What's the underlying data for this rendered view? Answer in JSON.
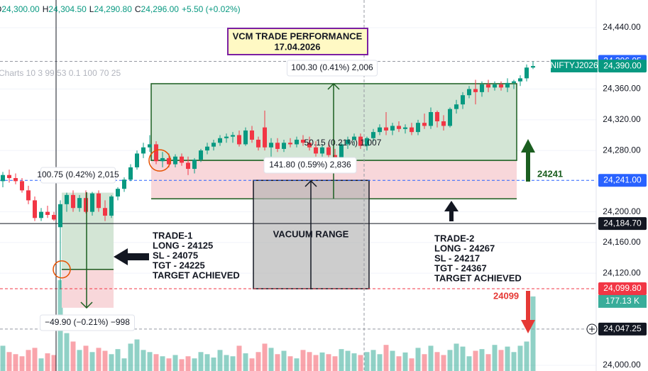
{
  "chart_data": {
    "type": "candlestick",
    "header": {
      "open_label": "O",
      "open": "24,300.00",
      "high_label": "H",
      "high": "24,304.50",
      "low_label": "L",
      "low": "24,290.80",
      "close_label": "C",
      "close": "24,296.00",
      "change": "+5.50 (+0.02%)"
    },
    "indicator": "Charts 10 3 99 53 0.1 100 70 25",
    "title": [
      "VCM TRADE PERFORMANCE",
      "17.04.2026"
    ],
    "symbol": "NIFTYJ2026",
    "up_color": "#089981",
    "down_color": "#f23645",
    "ylim": [
      23992.6,
      24476.05
    ],
    "yticks": [
      {
        "value": 24440,
        "label": "24,440.00"
      },
      {
        "value": 24360,
        "label": "24,360.00"
      },
      {
        "value": 24320,
        "label": "24,320.00"
      },
      {
        "value": 24280,
        "label": "24,280.00"
      },
      {
        "value": 24200,
        "label": "24,200.00"
      },
      {
        "value": 24160,
        "label": "24,160.00"
      },
      {
        "value": 24120,
        "label": "24,120.00"
      },
      {
        "value": 24000,
        "label": "24,000.00"
      }
    ],
    "grid": true,
    "levels": [
      {
        "value": 24396.05,
        "label": "24,396.05",
        "color": "#2962ff",
        "line_color": "#9598a1",
        "dashed": true
      },
      {
        "value": 24390,
        "label": "24,390.00",
        "color": "#089981",
        "line_color": null,
        "dashed": false
      },
      {
        "value": 24241,
        "label": "24,241.00",
        "color": "#2962ff",
        "line_color": "#2962ff",
        "dashed": true
      },
      {
        "value": 24184.7,
        "label": "24,184.70",
        "color": "#131722",
        "line_color": "#131722",
        "dashed": false
      },
      {
        "value": 24099.8,
        "label": "24,099.80",
        "color": "#f23645",
        "line_color": "#f23645",
        "dashed": true
      },
      {
        "value": 24047.25,
        "label": "24,047.25",
        "color": "#131722",
        "line_color": "#9598a1",
        "dashed": true
      }
    ],
    "volume_ylim": [
      0,
      300
    ],
    "volume_label": "177.13 K",
    "candles": [
      {
        "open": 24240,
        "high": 24252,
        "low": 24232,
        "close": 24248
      },
      {
        "open": 24248,
        "high": 24255,
        "low": 24238,
        "close": 24244
      },
      {
        "open": 24244,
        "high": 24250,
        "low": 24236,
        "close": 24240
      },
      {
        "open": 24240,
        "high": 24244,
        "low": 24225,
        "close": 24228
      },
      {
        "open": 24228,
        "high": 24234,
        "low": 24210,
        "close": 24215
      },
      {
        "open": 24215,
        "high": 24220,
        "low": 24188,
        "close": 24192
      },
      {
        "open": 24192,
        "high": 24205,
        "low": 24188,
        "close": 24200
      },
      {
        "open": 24200,
        "high": 24208,
        "low": 24192,
        "close": 24196
      },
      {
        "open": 24196,
        "high": 24200,
        "low": 24188,
        "close": 24190
      },
      {
        "open": 24180,
        "high": 24215,
        "low": 24099,
        "close": 24210
      },
      {
        "open": 24210,
        "high": 24225,
        "low": 24200,
        "close": 24222
      },
      {
        "open": 24222,
        "high": 24228,
        "low": 24200,
        "close": 24205
      },
      {
        "open": 24205,
        "high": 24222,
        "low": 24200,
        "close": 24218
      },
      {
        "open": 24218,
        "high": 24228,
        "low": 24198,
        "close": 24200
      },
      {
        "open": 24200,
        "high": 24226,
        "low": 24195,
        "close": 24224
      },
      {
        "open": 24224,
        "high": 24228,
        "low": 24200,
        "close": 24205
      },
      {
        "open": 24205,
        "high": 24215,
        "low": 24188,
        "close": 24195
      },
      {
        "open": 24195,
        "high": 24222,
        "low": 24192,
        "close": 24220
      },
      {
        "open": 24220,
        "high": 24232,
        "low": 24215,
        "close": 24230
      },
      {
        "open": 24230,
        "high": 24245,
        "low": 24226,
        "close": 24242
      },
      {
        "open": 24242,
        "high": 24262,
        "low": 24240,
        "close": 24258
      },
      {
        "open": 24258,
        "high": 24280,
        "low": 24255,
        "close": 24276
      },
      {
        "open": 24276,
        "high": 24290,
        "low": 24270,
        "close": 24284
      },
      {
        "open": 24284,
        "high": 24300,
        "low": 24278,
        "close": 24288
      },
      {
        "open": 24288,
        "high": 24292,
        "low": 24262,
        "close": 24266
      },
      {
        "open": 24266,
        "high": 24278,
        "low": 24258,
        "close": 24270
      },
      {
        "open": 24270,
        "high": 24276,
        "low": 24258,
        "close": 24262
      },
      {
        "open": 24262,
        "high": 24275,
        "low": 24258,
        "close": 24272
      },
      {
        "open": 24272,
        "high": 24276,
        "low": 24260,
        "close": 24264
      },
      {
        "open": 24264,
        "high": 24272,
        "low": 24248,
        "close": 24256
      },
      {
        "open": 24256,
        "high": 24270,
        "low": 24250,
        "close": 24268
      },
      {
        "open": 24268,
        "high": 24282,
        "low": 24265,
        "close": 24280
      },
      {
        "open": 24280,
        "high": 24290,
        "low": 24275,
        "close": 24285
      },
      {
        "open": 24285,
        "high": 24294,
        "low": 24280,
        "close": 24290
      },
      {
        "open": 24290,
        "high": 24300,
        "low": 24286,
        "close": 24296
      },
      {
        "open": 24296,
        "high": 24302,
        "low": 24290,
        "close": 24298
      },
      {
        "open": 24298,
        "high": 24304,
        "low": 24290,
        "close": 24300
      },
      {
        "open": 24300,
        "high": 24306,
        "low": 24285,
        "close": 24288
      },
      {
        "open": 24288,
        "high": 24310,
        "low": 24286,
        "close": 24306
      },
      {
        "open": 24306,
        "high": 24312,
        "low": 24290,
        "close": 24294
      },
      {
        "open": 24294,
        "high": 24298,
        "low": 24280,
        "close": 24284
      },
      {
        "open": 24310,
        "high": 24332,
        "low": 24280,
        "close": 24284
      },
      {
        "open": 24284,
        "high": 24296,
        "low": 24272,
        "close": 24290
      },
      {
        "open": 24290,
        "high": 24296,
        "low": 24278,
        "close": 24282
      },
      {
        "open": 24282,
        "high": 24294,
        "low": 24278,
        "close": 24290
      },
      {
        "open": 24290,
        "high": 24296,
        "low": 24284,
        "close": 24288
      },
      {
        "open": 24288,
        "high": 24298,
        "low": 24284,
        "close": 24294
      },
      {
        "open": 24294,
        "high": 24300,
        "low": 24286,
        "close": 24290
      },
      {
        "open": 24290,
        "high": 24298,
        "low": 24280,
        "close": 24284
      },
      {
        "open": 24284,
        "high": 24292,
        "low": 24272,
        "close": 24276
      },
      {
        "open": 24276,
        "high": 24288,
        "low": 24272,
        "close": 24284
      },
      {
        "open": 24284,
        "high": 24290,
        "low": 24270,
        "close": 24274
      },
      {
        "open": 24274,
        "high": 24282,
        "low": 24266,
        "close": 24270
      },
      {
        "open": 24270,
        "high": 24290,
        "low": 24268,
        "close": 24288
      },
      {
        "open": 24288,
        "high": 24298,
        "low": 24282,
        "close": 24294
      },
      {
        "open": 24294,
        "high": 24302,
        "low": 24286,
        "close": 24298
      },
      {
        "open": 24298,
        "high": 24302,
        "low": 24282,
        "close": 24286
      },
      {
        "open": 24286,
        "high": 24298,
        "low": 24280,
        "close": 24296
      },
      {
        "open": 24296,
        "high": 24308,
        "low": 24292,
        "close": 24304
      },
      {
        "open": 24304,
        "high": 24314,
        "low": 24300,
        "close": 24310
      },
      {
        "open": 24310,
        "high": 24330,
        "low": 24300,
        "close": 24306
      },
      {
        "open": 24306,
        "high": 24316,
        "low": 24300,
        "close": 24312
      },
      {
        "open": 24312,
        "high": 24318,
        "low": 24304,
        "close": 24308
      },
      {
        "open": 24308,
        "high": 24314,
        "low": 24302,
        "close": 24310
      },
      {
        "open": 24310,
        "high": 24316,
        "low": 24300,
        "close": 24304
      },
      {
        "open": 24304,
        "high": 24320,
        "low": 24300,
        "close": 24316
      },
      {
        "open": 24316,
        "high": 24328,
        "low": 24308,
        "close": 24312
      },
      {
        "open": 24312,
        "high": 24336,
        "low": 24308,
        "close": 24330
      },
      {
        "open": 24330,
        "high": 24332,
        "low": 24310,
        "close": 24318
      },
      {
        "open": 24318,
        "high": 24326,
        "low": 24306,
        "close": 24312
      },
      {
        "open": 24312,
        "high": 24336,
        "low": 24310,
        "close": 24334
      },
      {
        "open": 24334,
        "high": 24346,
        "low": 24328,
        "close": 24340
      },
      {
        "open": 24340,
        "high": 24356,
        "low": 24334,
        "close": 24352
      },
      {
        "open": 24352,
        "high": 24364,
        "low": 24348,
        "close": 24360
      },
      {
        "open": 24360,
        "high": 24372,
        "low": 24340,
        "close": 24356
      },
      {
        "open": 24356,
        "high": 24370,
        "low": 24350,
        "close": 24366
      },
      {
        "open": 24366,
        "high": 24372,
        "low": 24356,
        "close": 24362
      },
      {
        "open": 24362,
        "high": 24370,
        "low": 24358,
        "close": 24366
      },
      {
        "open": 24366,
        "high": 24370,
        "low": 24358,
        "close": 24362
      },
      {
        "open": 24362,
        "high": 24374,
        "low": 24356,
        "close": 24368
      },
      {
        "open": 24368,
        "high": 24372,
        "low": 24360,
        "close": 24370
      },
      {
        "open": 24370,
        "high": 24378,
        "low": 24364,
        "close": 24374
      },
      {
        "open": 24374,
        "high": 24392,
        "low": 24370,
        "close": 24388
      },
      {
        "open": 24388,
        "high": 24396,
        "low": 24386,
        "close": 24390
      }
    ],
    "volume": [
      60,
      45,
      40,
      35,
      50,
      55,
      30,
      42,
      38,
      216,
      90,
      70,
      50,
      60,
      45,
      55,
      48,
      40,
      52,
      30,
      65,
      75,
      50,
      45,
      40,
      35,
      30,
      38,
      28,
      35,
      30,
      45,
      40,
      32,
      50,
      38,
      35,
      60,
      42,
      30,
      45,
      65,
      55,
      40,
      48,
      35,
      30,
      50,
      45,
      38,
      44,
      40,
      35,
      52,
      48,
      42,
      38,
      45,
      50,
      40,
      62,
      48,
      35,
      44,
      30,
      55,
      40,
      60,
      45,
      38,
      50,
      65,
      58,
      35,
      48,
      52,
      40,
      62,
      50,
      58,
      45,
      60,
      70,
      177.13
    ],
    "zones": [
      {
        "entry": 24125,
        "stop": 24075,
        "target": 24225
      },
      {
        "entry": 24267,
        "stop": 24217,
        "target": 24367
      }
    ],
    "vacuum": {
      "label": "VACUUM RANGE",
      "top": 24241,
      "bottom": 24099.8
    },
    "measures": [
      "100.30 (0.41%) 2,006",
      "100.75 (0.42%) 2,015",
      "50.15 (0.21%) 1,007",
      "141.80 (0.59%) 2,836",
      "−49.90 (−0.21%) −998"
    ],
    "trades": [
      [
        "TRADE-1",
        "LONG - 24125",
        "SL - 24075",
        "TGT - 24225",
        "TARGET ACHIEVED"
      ],
      [
        "TRADE-2",
        "LONG - 24267",
        "SL - 24217",
        "TGT - 24367",
        "TARGET ACHIEVED"
      ]
    ],
    "level_notes": [
      {
        "text": "24241",
        "color": "#1b5e20"
      },
      {
        "text": "24099",
        "color": "#e53935"
      }
    ]
  }
}
